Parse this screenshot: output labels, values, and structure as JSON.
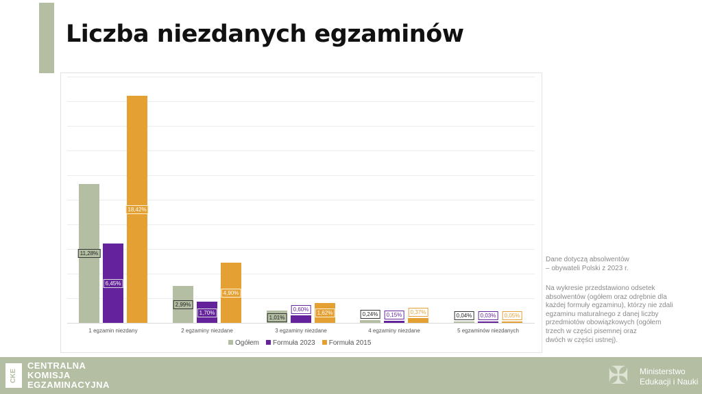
{
  "title": "Liczba niezdanych egzaminów",
  "chart_data": {
    "type": "bar",
    "title": "",
    "xlabel": "",
    "ylabel": "",
    "ylim": [
      0,
      20
    ],
    "grid": true,
    "legend_position": "bottom",
    "categories": [
      "1 egzamin niezdany",
      "2 egzaminy niezdane",
      "3 egzaminy niezdane",
      "4 egzaminy niezdane",
      "5 egzaminów niezdanych"
    ],
    "series": [
      {
        "name": "Ogółem",
        "color": "#b3bea3",
        "values": [
          11.28,
          2.99,
          1.01,
          0.24,
          0.04
        ],
        "labels": [
          "11,28%",
          "2,99%",
          "1,01%",
          "0,24%",
          "0,04%"
        ]
      },
      {
        "name": "Formuła 2023",
        "color": "#64239a",
        "values": [
          6.45,
          1.7,
          0.6,
          0.15,
          0.03
        ],
        "labels": [
          "6,45%",
          "1,70%",
          "0,60%",
          "0,15%",
          "0,03%"
        ]
      },
      {
        "name": "Formuła 2015",
        "color": "#e5a033",
        "values": [
          18.42,
          4.9,
          1.62,
          0.37,
          0.05
        ],
        "labels": [
          "18,42%",
          "4,90%",
          "1,62%",
          "0,37%",
          "0,05%"
        ]
      }
    ]
  },
  "notes": {
    "line1": "Dane dotyczą  absolwentów",
    "line2": "– obywateli Polski z 2023 r.",
    "para": [
      "Na wykresie przedstawiono odsetek",
      "absolwentów (ogółem oraz odrębnie dla",
      "każdej formuły egzaminu), którzy nie zdali",
      "egzaminu maturalnego z danej liczby",
      "przedmiotów obowiązkowych (ogółem",
      "trzech w części pisemnej oraz",
      "dwóch w części ustnej)."
    ]
  },
  "footer": {
    "cke_logo_text": "CKE",
    "cke_lines": [
      "CENTRALNA",
      "KOMISJA",
      "EGZAMINACYJNA"
    ],
    "men_lines": [
      "Ministerstwo",
      "Edukacji i Nauki"
    ]
  },
  "colors": {
    "accent": "#b3bea3",
    "ogolem": "#b3bea3",
    "f2023": "#64239a",
    "f2015": "#e5a033"
  }
}
